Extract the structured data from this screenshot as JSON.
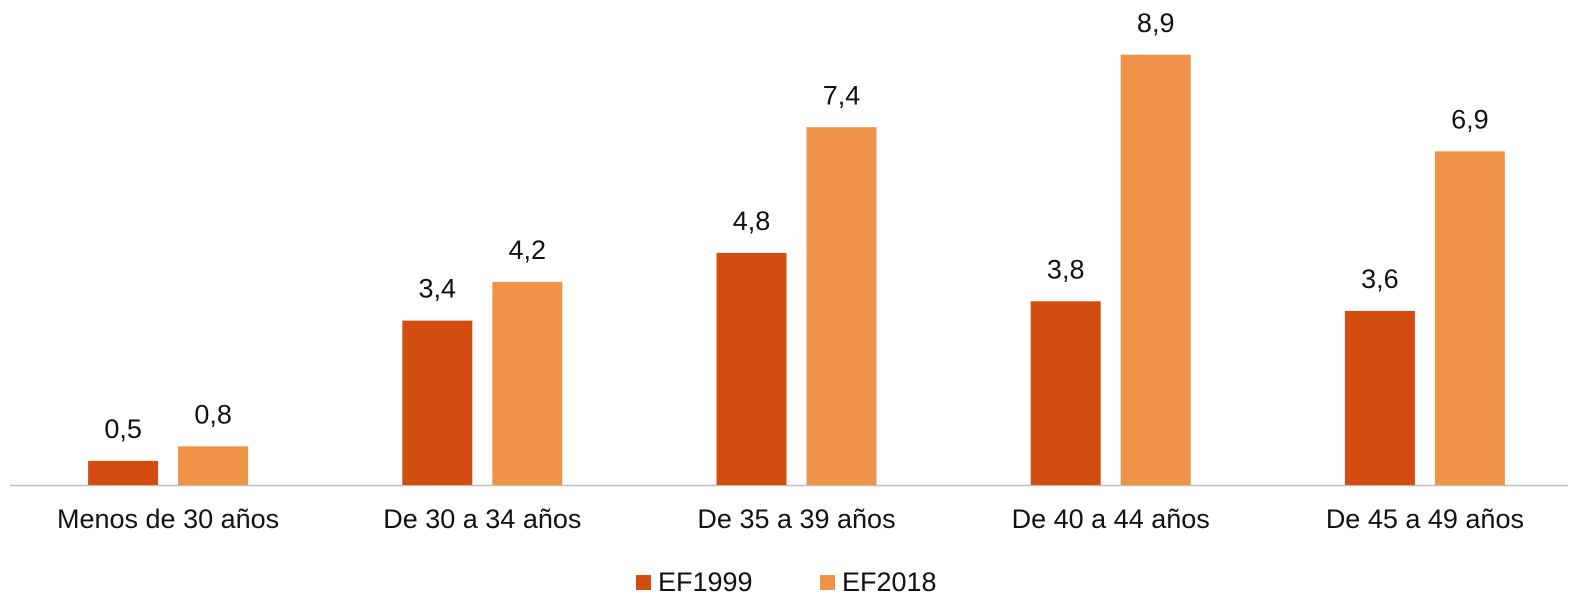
{
  "chart_data": {
    "type": "bar",
    "categories": [
      "Menos de 30 años",
      "De 30 a 34 años",
      "De 35 a 39 años",
      "De 40 a 44 años",
      "De 45 a 49 años"
    ],
    "series": [
      {
        "name": "EF1999",
        "color": "#d34c10",
        "values": [
          0.5,
          3.4,
          4.8,
          3.8,
          3.6
        ],
        "value_labels": [
          "0,5",
          "3,4",
          "4,8",
          "3,8",
          "3,6"
        ]
      },
      {
        "name": "EF2018",
        "color": "#ee9348",
        "values": [
          0.8,
          4.2,
          7.4,
          8.9,
          6.9
        ],
        "value_labels": [
          "0,8",
          "4,2",
          "7,4",
          "8,9",
          "6,9"
        ]
      }
    ]
  }
}
